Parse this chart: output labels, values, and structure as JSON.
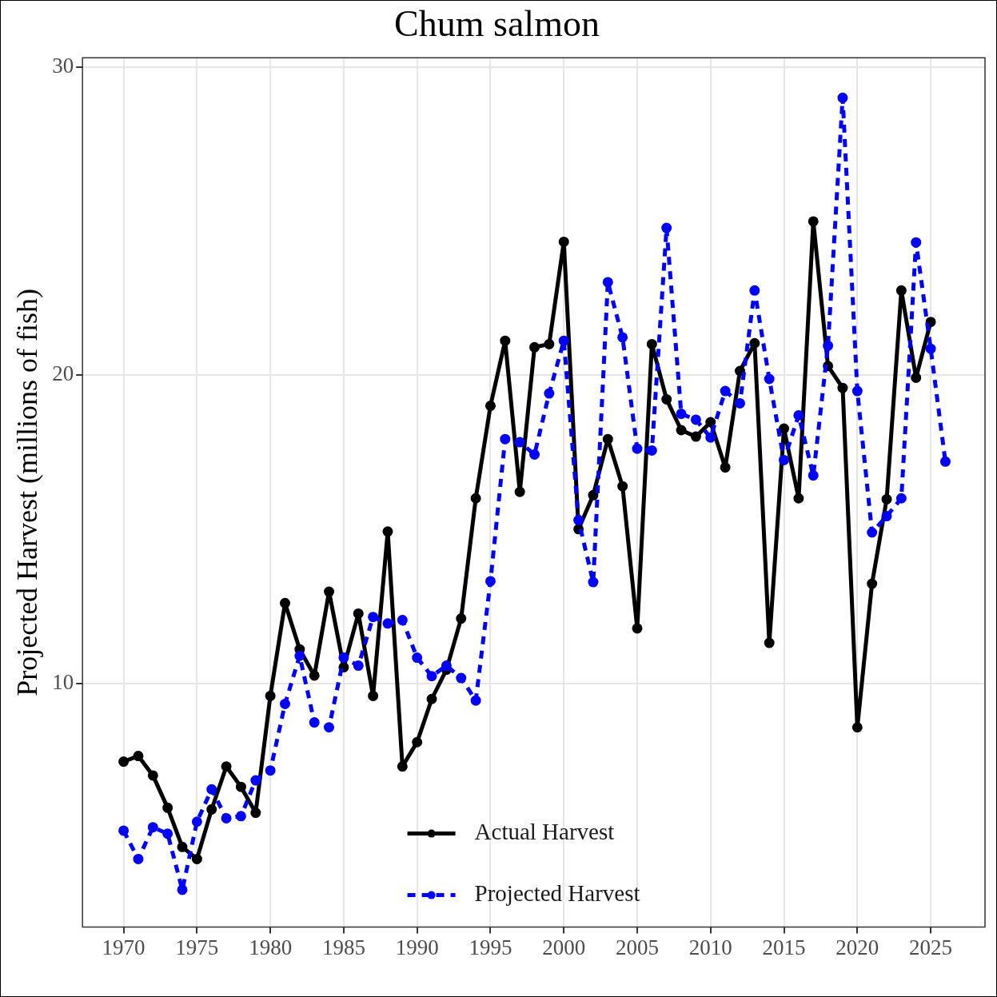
{
  "chart_data": {
    "type": "line",
    "title": "Chum salmon",
    "ylabel": "Projected Harvest (millions of fish)",
    "xlim": [
      1967.2,
      2028.7
    ],
    "xticks": [
      1970,
      1975,
      1980,
      1985,
      1990,
      1995,
      2000,
      2005,
      2010,
      2015,
      2020,
      2025
    ],
    "ylim": [
      2.1,
      30.3
    ],
    "yticks": [
      10,
      20,
      30
    ],
    "grid": true,
    "legend": "bottom",
    "marker": "circle",
    "series": [
      {
        "name": "Actual Harvest",
        "color": "#000000",
        "line_style": "solid",
        "x": [
          1970,
          1971,
          1972,
          1973,
          1974,
          1975,
          1976,
          1977,
          1978,
          1979,
          1980,
          1981,
          1982,
          1983,
          1984,
          1985,
          1986,
          1987,
          1988,
          1989,
          1990,
          1991,
          1992,
          1993,
          1994,
          1995,
          1996,
          1997,
          1998,
          1999,
          2000,
          2001,
          2002,
          2003,
          2004,
          2005,
          2006,
          2007,
          2008,
          2009,
          2010,
          2011,
          2012,
          2013,
          2014,
          2015,
          2016,
          2017,
          2018,
          2019,
          2020,
          2021,
          2022,
          2023,
          2024,
          2025
        ],
        "values": [
          7.47,
          7.65,
          7.02,
          5.97,
          4.7,
          4.31,
          5.92,
          7.31,
          6.65,
          5.81,
          9.6,
          12.61,
          11.11,
          10.26,
          12.98,
          10.53,
          12.27,
          9.6,
          14.93,
          7.31,
          8.1,
          9.5,
          10.45,
          12.11,
          16.01,
          19.01,
          21.12,
          16.22,
          20.91,
          21.01,
          24.33,
          15.01,
          16.11,
          17.93,
          16.4,
          11.79,
          21.01,
          19.22,
          18.22,
          18.01,
          18.48,
          17.01,
          20.14,
          21.04,
          11.32,
          18.27,
          16.01,
          24.99,
          20.3,
          19.59,
          8.58,
          13.24,
          15.98,
          22.75,
          19.92,
          21.73
        ]
      },
      {
        "name": "Projected Harvest",
        "color": "#0000ff",
        "line_style": "dashed",
        "x": [
          1970,
          1971,
          1972,
          1973,
          1974,
          1975,
          1976,
          1977,
          1978,
          1979,
          1980,
          1981,
          1982,
          1983,
          1984,
          1985,
          1986,
          1987,
          1988,
          1989,
          1990,
          1991,
          1992,
          1993,
          1994,
          1995,
          1996,
          1997,
          1998,
          1999,
          2000,
          2001,
          2002,
          2003,
          2004,
          2005,
          2006,
          2007,
          2008,
          2009,
          2010,
          2011,
          2012,
          2013,
          2014,
          2015,
          2016,
          2017,
          2018,
          2019,
          2020,
          2021,
          2022,
          2023,
          2024,
          2025,
          2026
        ],
        "values": [
          5.23,
          4.31,
          5.34,
          5.13,
          3.31,
          5.52,
          6.57,
          5.63,
          5.7,
          6.86,
          7.18,
          9.34,
          10.9,
          8.74,
          8.58,
          10.84,
          10.58,
          12.16,
          11.95,
          12.06,
          10.84,
          10.24,
          10.58,
          10.18,
          9.45,
          13.32,
          17.93,
          17.83,
          17.43,
          19.41,
          21.12,
          15.3,
          13.29,
          23.02,
          21.23,
          17.62,
          17.56,
          24.78,
          18.75,
          18.56,
          17.98,
          19.49,
          19.09,
          22.75,
          19.88,
          17.25,
          18.7,
          16.75,
          20.96,
          29.0,
          19.49,
          14.9,
          15.43,
          16.01,
          24.31,
          20.86,
          17.2
        ]
      }
    ]
  }
}
